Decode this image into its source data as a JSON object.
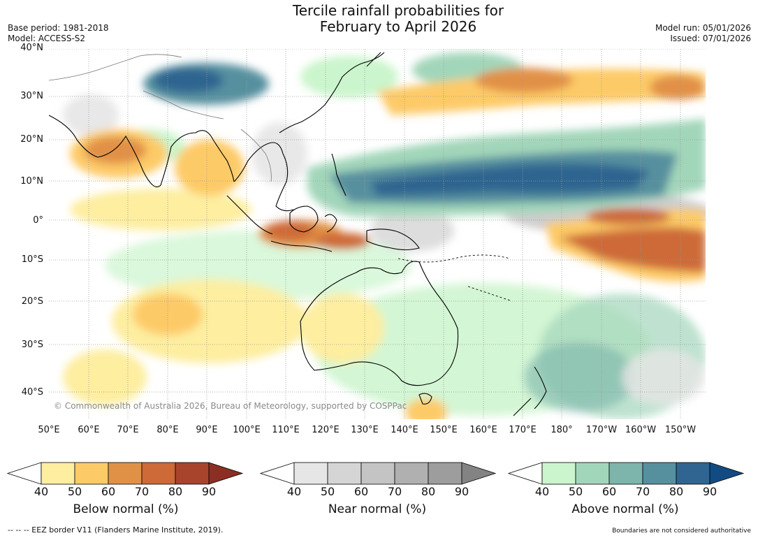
{
  "title": {
    "line1": "Tercile rainfall probabilities for",
    "line2": "February to April 2026"
  },
  "meta_left": {
    "base_period": "Base period: 1981-2018",
    "model": "Model: ACCESS-S2"
  },
  "meta_right": {
    "model_run": "Model run: 05/01/2026",
    "issued": "Issued: 07/01/2026"
  },
  "map": {
    "lat_labels": [
      "40°N",
      "30°N",
      "20°N",
      "10°N",
      "0°",
      "10°S",
      "20°S",
      "30°S",
      "40°S"
    ],
    "lon_labels": [
      "50°E",
      "60°E",
      "70°E",
      "80°E",
      "90°E",
      "100°E",
      "110°E",
      "120°E",
      "130°E",
      "140°E",
      "150°E",
      "160°E",
      "170°E",
      "180°",
      "170°W",
      "160°W",
      "150°W"
    ],
    "copyright": "© Commonwealth of Australia 2026, Bureau of Meteorology, supported by COSPPac"
  },
  "colorbars": {
    "below": {
      "label": "Below normal (%)",
      "ticks": [
        "40",
        "50",
        "60",
        "70",
        "80",
        "90"
      ],
      "colors": [
        "#ffffff",
        "#fdeea0",
        "#fdca68",
        "#e19146",
        "#cd6a37",
        "#a9442c",
        "#8d2e22"
      ]
    },
    "near": {
      "label": "Near normal (%)",
      "ticks": [
        "40",
        "50",
        "60",
        "70",
        "80",
        "90"
      ],
      "colors": [
        "#ffffff",
        "#e6e6e6",
        "#d5d5d5",
        "#c4c4c4",
        "#b0b0b0",
        "#9d9d9d",
        "#838383"
      ]
    },
    "above": {
      "label": "Above normal (%)",
      "ticks": [
        "40",
        "50",
        "60",
        "70",
        "80",
        "90"
      ],
      "colors": [
        "#ffffff",
        "#cbf5cc",
        "#a2d6ba",
        "#7db5ac",
        "#56909f",
        "#2f6590",
        "#124b81"
      ]
    }
  },
  "footer": {
    "eez": "--  --  -- EEZ border V11 (Flanders Marine Institute, 2019).",
    "disclaimer": "Boundaries are not considered authoritative"
  }
}
